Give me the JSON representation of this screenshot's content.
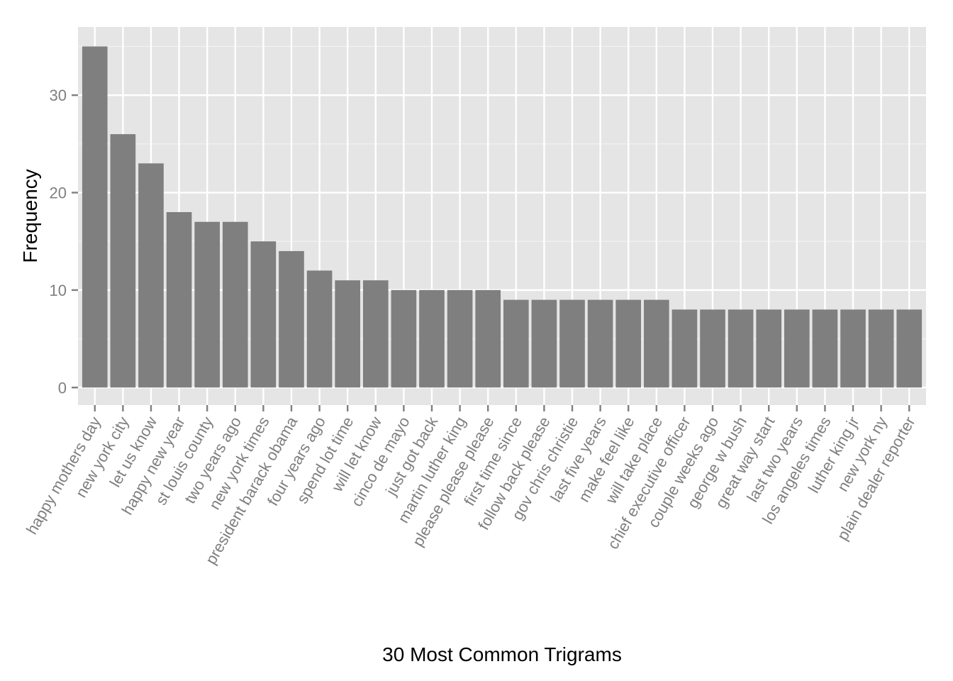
{
  "chart_data": {
    "type": "bar",
    "title": "",
    "xlabel": "30 Most Common Trigrams",
    "ylabel": "Frequency",
    "ylim": [
      -1.8,
      37
    ],
    "yticks": [
      0,
      10,
      20,
      30
    ],
    "grid": true,
    "legend": "none",
    "colors": {
      "panel": "#e5e5e5",
      "grid_major": "#ffffff",
      "grid_minor": "#f2f2f2",
      "bar": "#7f7f7f",
      "tick": "#7f7f7f",
      "tick_label": "#7f7f7f",
      "axis_title": "#000000"
    },
    "categories": [
      "happy mothers day",
      "new york city",
      "let us know",
      "happy new year",
      "st louis county",
      "two years ago",
      "new york times",
      "president barack obama",
      "four years ago",
      "spend lot time",
      "will let know",
      "cinco de mayo",
      "just got back",
      "martin luther king",
      "please please please",
      "first time since",
      "follow back please",
      "gov chris christie",
      "last five years",
      "make feel like",
      "will take place",
      "chief executive officer",
      "couple weeks ago",
      "george w bush",
      "great way start",
      "last two years",
      "los angeles times",
      "luther king jr",
      "new york ny",
      "plain dealer reporter"
    ],
    "values": [
      35,
      26,
      23,
      18,
      17,
      17,
      15,
      14,
      12,
      11,
      11,
      10,
      10,
      10,
      10,
      9,
      9,
      9,
      9,
      9,
      9,
      8,
      8,
      8,
      8,
      8,
      8,
      8,
      8,
      8
    ]
  }
}
